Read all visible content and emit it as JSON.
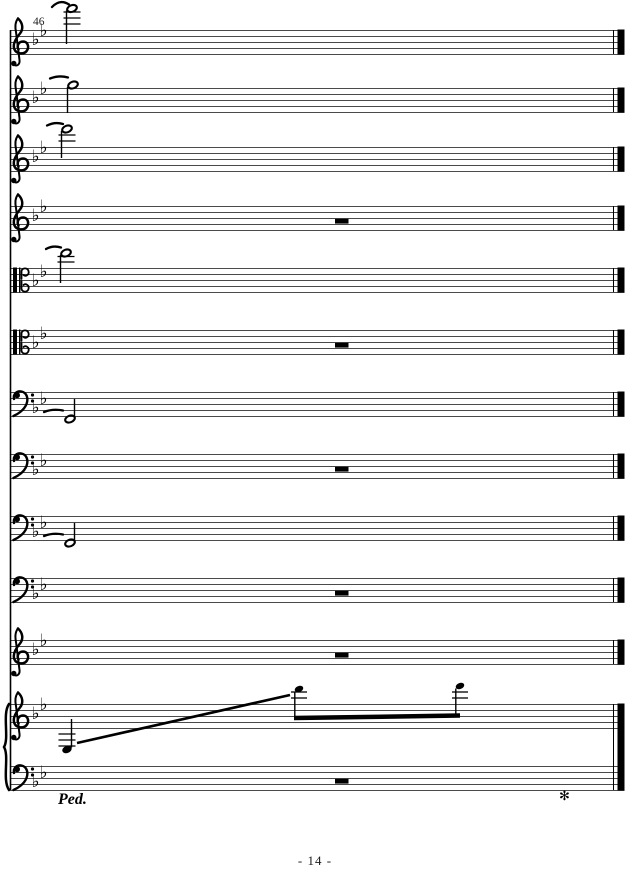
{
  "page": {
    "measure_number": "46",
    "page_number_label": "- 14 -"
  },
  "score": {
    "colors": {
      "ink": "#000000",
      "staff_line": "#4a4a4a"
    },
    "key_signature": {
      "name": "two flats (B-flat major / G minor)",
      "flat_glyph": "♭",
      "flats": [
        "B♭",
        "E♭"
      ]
    },
    "pedal": {
      "start_label": "Ped.",
      "release_glyph": "✻"
    },
    "staves": [
      {
        "index": 1,
        "clef": "treble",
        "events": [
          {
            "type": "half_note",
            "register": "very high above staff",
            "ledger_lines": 3,
            "stem": "down",
            "tie_from_previous": true
          }
        ]
      },
      {
        "index": 2,
        "clef": "treble",
        "events": [
          {
            "type": "half_note",
            "register": "just above staff",
            "ledger_lines": 0,
            "stem": "down",
            "tie_from_previous": true
          }
        ]
      },
      {
        "index": 3,
        "clef": "treble",
        "events": [
          {
            "type": "half_note",
            "register": "high above staff",
            "ledger_lines": 2,
            "stem": "down",
            "tie_from_previous": true
          }
        ]
      },
      {
        "index": 4,
        "clef": "treble",
        "events": [
          {
            "type": "whole_rest"
          }
        ]
      },
      {
        "index": 5,
        "clef": "alto",
        "events": [
          {
            "type": "half_note",
            "register": "above staff",
            "ledger_lines": 2,
            "stem": "down",
            "tie_from_previous": true
          }
        ]
      },
      {
        "index": 6,
        "clef": "alto",
        "events": [
          {
            "type": "whole_rest"
          }
        ]
      },
      {
        "index": 7,
        "clef": "bass",
        "events": [
          {
            "type": "half_note",
            "register": "below staff",
            "ledger_lines": 0,
            "stem": "up",
            "tie_from_previous": true
          }
        ]
      },
      {
        "index": 8,
        "clef": "bass",
        "events": [
          {
            "type": "whole_rest"
          }
        ]
      },
      {
        "index": 9,
        "clef": "bass",
        "events": [
          {
            "type": "half_note",
            "register": "below staff",
            "ledger_lines": 0,
            "stem": "up",
            "tie_from_previous": true
          }
        ]
      },
      {
        "index": 10,
        "clef": "bass",
        "events": [
          {
            "type": "whole_rest"
          }
        ]
      },
      {
        "index": 11,
        "clef": "treble",
        "events": [
          {
            "type": "whole_rest"
          }
        ]
      },
      {
        "index": 12,
        "clef": "treble",
        "group": "piano-right-hand",
        "events": [
          {
            "type": "eighth_note",
            "register": "below staff",
            "ledger_lines": 3,
            "stem": "up"
          },
          {
            "type": "glissando",
            "direction": "ascending"
          },
          {
            "type": "beamed_eighth_pair",
            "register": "above staff",
            "ledger_lines": 2,
            "stem": "down"
          }
        ]
      },
      {
        "index": 13,
        "clef": "bass",
        "group": "piano-left-hand",
        "events": [
          {
            "type": "whole_rest"
          }
        ]
      }
    ]
  }
}
